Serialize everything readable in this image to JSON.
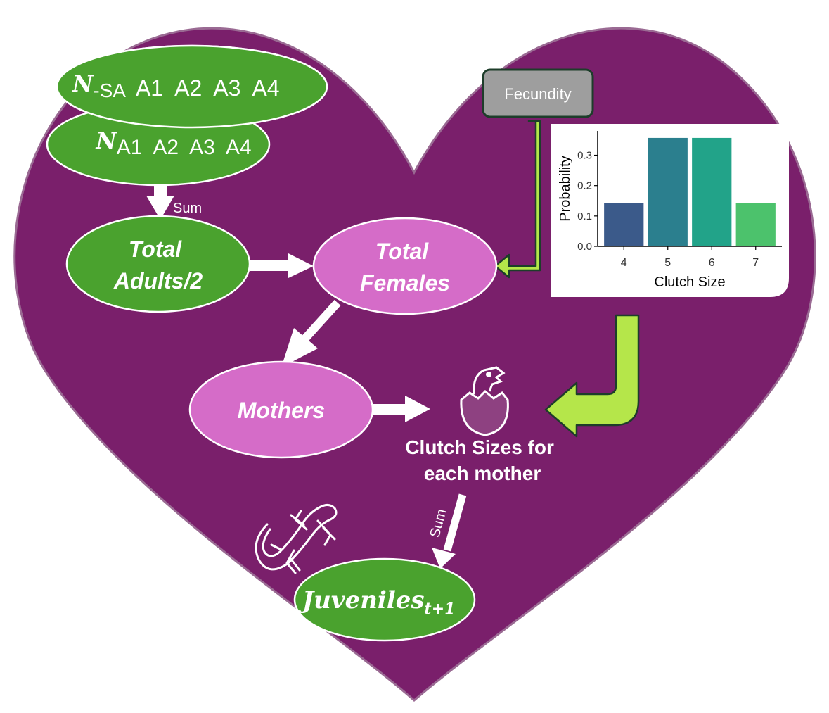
{
  "nodes": {
    "n_sa_symbol": "N",
    "n_sa_subscript": "-SA",
    "n_sa_stages": "A1  A2  A3  A4",
    "n_a_symbol": "N",
    "n_a_stages": "A1  A2  A3  A4",
    "total_adults_line1": "Total",
    "total_adults_line2": "Adults/2",
    "total_females_line1": "Total",
    "total_females_line2": "Females",
    "mothers": "Mothers",
    "clutch_line1": "Clutch Sizes for",
    "clutch_line2": "each mother",
    "juveniles_main": "Juveniles",
    "juveniles_subscript": "t+1",
    "fecundity": "Fecundity"
  },
  "edge_labels": {
    "sum_top": "Sum",
    "sum_bottom": "Sum"
  },
  "colors": {
    "heart": "#7a1f6b",
    "green_node": "#4aa22e",
    "pink_node": "#d56cc8",
    "lime_arrow": "#b5e64a",
    "fecundity_box": "#9e9e9e"
  },
  "icons": [
    "egg-hatchling-icon",
    "lizard-icon"
  ],
  "chart_data": {
    "type": "bar",
    "categories": [
      "4",
      "5",
      "6",
      "7"
    ],
    "values": [
      0.143,
      0.357,
      0.357,
      0.143
    ],
    "colors": [
      "#3b5a8a",
      "#2b7f8e",
      "#22a389",
      "#4cc26c"
    ],
    "xlabel": "Clutch Size",
    "ylabel": "Probability",
    "ylim": [
      0,
      0.38
    ],
    "yticks": [
      "0.0",
      "0.1",
      "0.2",
      "0.3"
    ],
    "ytick_values": [
      0,
      0.1,
      0.2,
      0.3
    ]
  }
}
